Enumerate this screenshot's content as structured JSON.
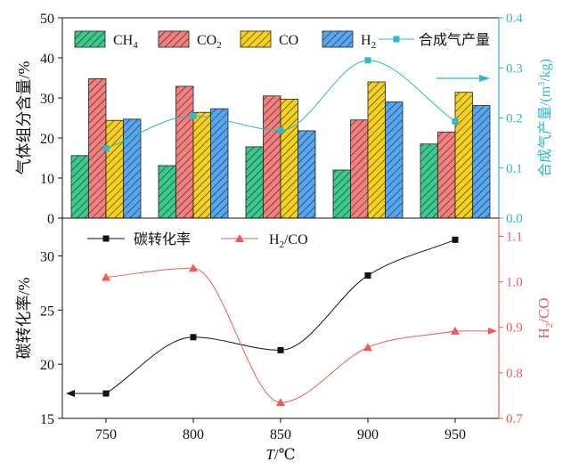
{
  "chart_data": [
    {
      "type": "bar",
      "categories": [
        "750",
        "800",
        "850",
        "900",
        "950"
      ],
      "ylabel": "气体组分含量/%",
      "ylim": [
        0,
        50
      ],
      "yticks": [
        "0",
        "10",
        "20",
        "30",
        "40",
        "50"
      ],
      "series": [
        {
          "name": "CH",
          "sub": "4",
          "color": "#3cc98c",
          "values": [
            15.6,
            13.1,
            17.8,
            12.0,
            18.5
          ]
        },
        {
          "name": "CO",
          "sub": "2",
          "color": "#f47f7f",
          "values": [
            34.8,
            32.9,
            30.5,
            24.5,
            21.5
          ]
        },
        {
          "name": "CO",
          "sub": "",
          "color": "#f7d21c",
          "values": [
            24.4,
            26.4,
            29.7,
            34.0,
            31.4
          ]
        },
        {
          "name": "H",
          "sub": "2",
          "color": "#57a6f2",
          "values": [
            24.7,
            27.3,
            21.8,
            29.0,
            28.1
          ]
        }
      ],
      "y2": {
        "label": "合成气产量/(m³/kg)",
        "label_prefix": "合成气产量/(m",
        "label_sup": "3",
        "label_suffix": "/kg)",
        "ylim": [
          0,
          0.4
        ],
        "yticks": [
          "0.0",
          "0.1",
          "0.2",
          "0.3",
          "0.4"
        ],
        "color": "#2fb9c4",
        "series_name": "合成气产量",
        "values": [
          0.139,
          0.204,
          0.175,
          0.315,
          0.193
        ]
      },
      "legend": "top, single row"
    },
    {
      "type": "line",
      "x": [
        750,
        800,
        850,
        900,
        950
      ],
      "xlabel_italic": "T",
      "xlabel_rest": "/℃",
      "xlim": [
        725,
        975
      ],
      "xticks": [
        "750",
        "800",
        "850",
        "900",
        "950"
      ],
      "ylabel": "碳转化率/%",
      "ylim": [
        15,
        33.5
      ],
      "yticks": [
        "15",
        "20",
        "25",
        "30"
      ],
      "series": [
        {
          "name": "碳转化率",
          "color": "#111111",
          "marker": "square",
          "values": [
            17.3,
            22.5,
            21.3,
            28.2,
            31.5
          ]
        }
      ],
      "y2": {
        "label": "H₂/CO",
        "label_prefix": "H",
        "label_sub": "2",
        "label_suffix": "/CO",
        "ylim": [
          0.7,
          1.14
        ],
        "yticks": [
          "0.7",
          "0.8",
          "0.9",
          "1.0",
          "1.1"
        ],
        "color": "#f25a5a",
        "series_name": "H₂/CO",
        "series_prefix": "H",
        "series_sub": "2",
        "series_suffix": "/CO",
        "marker": "triangle",
        "values": [
          1.01,
          1.03,
          0.735,
          0.856,
          0.892
        ]
      },
      "legend": "top-left, single row"
    }
  ]
}
